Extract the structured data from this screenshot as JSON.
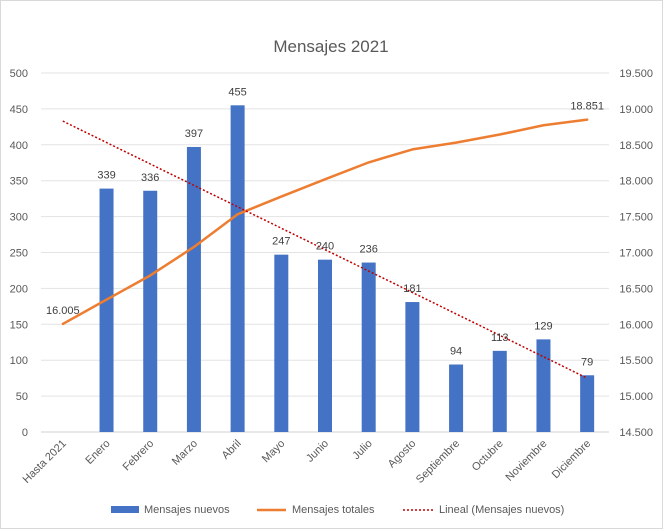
{
  "chart_data": {
    "type": "bar",
    "title": "Mensajes 2021",
    "categories": [
      "Hasta 2021",
      "Enero",
      "Febrero",
      "Marzo",
      "Abril",
      "Mayo",
      "Junio",
      "Julio",
      "Agosto",
      "Septiembre",
      "Octubre",
      "Noviembre",
      "Diciembre"
    ],
    "series": [
      {
        "name": "Mensajes nuevos",
        "type": "bar",
        "axis": "left",
        "color": "#4472C4",
        "values": [
          null,
          339,
          336,
          397,
          455,
          247,
          240,
          236,
          181,
          94,
          113,
          129,
          79
        ],
        "labels": [
          "",
          "339",
          "336",
          "397",
          "455",
          "247",
          "240",
          "236",
          "181",
          "94",
          "113",
          "129",
          "79"
        ]
      },
      {
        "name": "Mensajes totales",
        "type": "line",
        "axis": "right",
        "color": "#ED7D31",
        "values": [
          16005,
          16344,
          16680,
          17077,
          17532,
          17779,
          18019,
          18255,
          18436,
          18530,
          18643,
          18772,
          18851
        ],
        "labels": [
          "16.005",
          "",
          "",
          "",
          "",
          "",
          "",
          "",
          "",
          "",
          "",
          "",
          "18.851"
        ]
      },
      {
        "name": "Lineal (Mensajes nuevos)",
        "type": "trendline",
        "axis": "left",
        "color": "#C00000",
        "from": {
          "category": "Hasta 2021",
          "value": 433
        },
        "to": {
          "category": "Diciembre",
          "value": 75
        }
      }
    ],
    "y_left": {
      "min": 0,
      "max": 500,
      "ticks": [
        "0",
        "50",
        "100",
        "150",
        "200",
        "250",
        "300",
        "350",
        "400",
        "450",
        "500"
      ]
    },
    "y_right": {
      "min": 14500,
      "max": 19500,
      "ticks": [
        "14.500",
        "15.000",
        "15.500",
        "16.000",
        "16.500",
        "17.000",
        "17.500",
        "18.000",
        "18.500",
        "19.000",
        "19.500"
      ]
    },
    "grid": true,
    "legend_position": "bottom"
  }
}
